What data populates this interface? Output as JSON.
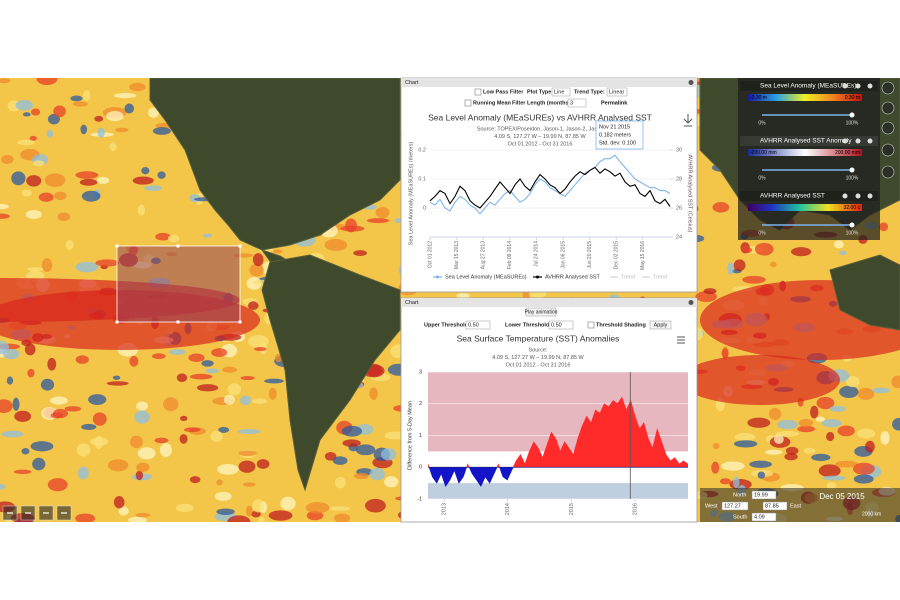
{
  "layers_panel": [
    {
      "name": "Sea Level Anomaly (MEaSUREs)",
      "min": "-0.30 m",
      "max": "0.30 m",
      "opacity_min": "0%",
      "opacity_max": "100%"
    },
    {
      "name": "AVHRR Analysed SST Anomaly",
      "min": "-200.00 mm",
      "max": "200.00 mm",
      "opacity_min": "0%",
      "opacity_max": "100%"
    },
    {
      "name": "AVHRR Analysed SST",
      "max": "32.00 c",
      "opacity_min": "0%",
      "opacity_max": "100%"
    }
  ],
  "bbox_panel": {
    "north_label": "North",
    "north": "19.99",
    "west_label": "West",
    "west": "127.27",
    "east_label": "East",
    "east": "87.85",
    "south_label": "South",
    "south": "4.09",
    "date": "Dec 05 2015",
    "scale": "2000 km"
  },
  "windows": [
    {
      "title": "Chart",
      "low_pass_filter": "Low Pass Filter",
      "plot_type_label": "Plot Type:",
      "plot_type": "Line",
      "trend_type_label": "Trend Type:",
      "trend_type": "Linear",
      "running_mean": "Running Mean",
      "filter_length_label": "Filter Length (months):",
      "filter_length": "3",
      "permalink": "Permalink",
      "tooltip": [
        "Nov 21 2015",
        "0.182 meters",
        "Std. dev: 0.100"
      ]
    },
    {
      "title": "Chart",
      "play_animation": "Play animation",
      "upper_threshold_label": "Upper Threshold",
      "lower_threshold_label": "Lower Threshold",
      "threshold_shading": "Threshold Shading",
      "apply": "Apply"
    }
  ],
  "chart_data": [
    {
      "type": "line",
      "title": "Sea Level Anomaly (MEaSUREs) vs AVHRR Analysed SST",
      "subtitle": [
        "Source: TOPEX/Poseidon, Jason-1, Jason-2, Jason",
        "4.09 S, 127.27 W – 19.99 N, 87.85 W",
        "Oct 01 2012 - Oct 31 2016"
      ],
      "y_label": "Sea Level Anomaly (MEaSUREs) (meters)",
      "y2_label": "AVHRR Analysed SST (Celsius)",
      "xlim": [
        "2012-10-01",
        "2016-10-31"
      ],
      "xticks": [
        {
          "value": "2012-10-01",
          "label": "Oct 01 2012"
        },
        {
          "value": "2013-03-15",
          "label": "Mar 15 2013"
        },
        {
          "value": "2013-08-27",
          "label": "Aug 27 2013"
        },
        {
          "value": "2014-02-09",
          "label": "Feb 09 2014"
        },
        {
          "value": "2014-07-24",
          "label": "Jul 24 2014"
        },
        {
          "value": "2015-01-06",
          "label": "Jan 06 2015"
        },
        {
          "value": "2015-06-20",
          "label": "Jun 20 2015"
        },
        {
          "value": "2015-12-02",
          "label": "Dec 02 2015"
        },
        {
          "value": "2016-05-15",
          "label": "May 15 2016"
        }
      ],
      "ylim": [
        -0.1,
        0.2
      ],
      "yticks": [
        0,
        0.1,
        0.2
      ],
      "y2lim": [
        24,
        30
      ],
      "y2ticks": [
        24,
        26,
        28,
        30
      ],
      "grid": true,
      "series": [
        {
          "name": "Sea Level Anomaly (MEaSUREs)",
          "color": "#7cb5ec",
          "values": [
            0.02,
            0.01,
            0.03,
            0.0,
            -0.01,
            0.02,
            0.04,
            0.03,
            0.01,
            0.0,
            -0.02,
            0.0,
            0.02,
            0.01,
            0.03,
            0.05,
            0.06,
            0.04,
            0.02,
            0.03,
            0.05,
            0.08,
            0.1,
            0.09,
            0.07,
            0.06,
            0.05,
            0.04,
            0.06,
            0.08,
            0.1,
            0.12,
            0.13,
            0.14,
            0.16,
            0.17,
            0.17,
            0.182,
            0.16,
            0.14,
            0.12,
            0.1,
            0.09,
            0.08,
            0.07,
            0.07,
            0.06,
            0.06,
            0.05
          ]
        },
        {
          "name": "AVHRR Analysed SST",
          "color": "#000000",
          "axis": "y2",
          "values": [
            26.5,
            26.8,
            27.2,
            27.0,
            26.3,
            26.8,
            27.5,
            27.2,
            26.5,
            26.2,
            26.0,
            26.4,
            26.8,
            27.3,
            27.8,
            27.4,
            27.0,
            27.6,
            28.0,
            27.5,
            27.2,
            27.8,
            28.3,
            28.0,
            27.6,
            27.4,
            27.0,
            27.3,
            27.8,
            28.2,
            28.5,
            28.3,
            28.6,
            28.8,
            28.4,
            28.7,
            28.5,
            28.2,
            28.4,
            27.8,
            27.5,
            27.6,
            27.0,
            26.8,
            27.2,
            26.5,
            26.3,
            26.6,
            26.1
          ]
        }
      ],
      "trend_legend": [
        "Trend",
        "Trend"
      ]
    },
    {
      "type": "area",
      "title": "Sea Surface Temperature (SST) Anomalies",
      "subtitle": [
        "Source:",
        "4.09 S, 127.27 W – 19.99 N, 87.85 W",
        "Oct 01 2012 - Oct 31 2016"
      ],
      "y_label": "Difference from 5-Day Mean",
      "xlim": [
        "2012-10-01",
        "2016-10-31"
      ],
      "xticks": [
        {
          "value": "2013-01-01",
          "label": "2013"
        },
        {
          "value": "2014-01-01",
          "label": "2014"
        },
        {
          "value": "2015-01-01",
          "label": "2015"
        },
        {
          "value": "2016-01-01",
          "label": "2016"
        }
      ],
      "ylim": [
        -1,
        3
      ],
      "yticks": [
        -1,
        0,
        1,
        2,
        3
      ],
      "values": [
        0.1,
        -0.3,
        -0.5,
        -0.2,
        -0.6,
        -0.4,
        -0.1,
        -0.5,
        -0.3,
        0.1,
        -0.2,
        -0.4,
        -0.6,
        -0.3,
        -0.5,
        -0.2,
        0.1,
        -0.3,
        -0.4,
        -0.1,
        0.2,
        0.4,
        0.1,
        0.5,
        0.8,
        0.6,
        0.3,
        0.7,
        1.1,
        0.9,
        0.5,
        0.8,
        0.6,
        0.4,
        0.9,
        1.3,
        1.6,
        1.4,
        1.8,
        1.7,
        2.0,
        1.9,
        2.1,
        2.0,
        2.2,
        1.8,
        2.1,
        1.6,
        1.2,
        1.4,
        0.9,
        0.6,
        1.2,
        0.8,
        0.4,
        0.2,
        0.3,
        0.1,
        0.2,
        0.1
      ],
      "color_above": "#ff2a2a",
      "color_below": "#1414c8",
      "upper_threshold": {
        "value": 0.5,
        "label": "0.50"
      },
      "lower_threshold": {
        "value": 0.5,
        "label": "0.50"
      },
      "upper_shade_color": "#e6b7bf",
      "lower_shade_color": "#bfcfe0",
      "threshold_shading": true,
      "cursor": "2015-12-05"
    }
  ]
}
